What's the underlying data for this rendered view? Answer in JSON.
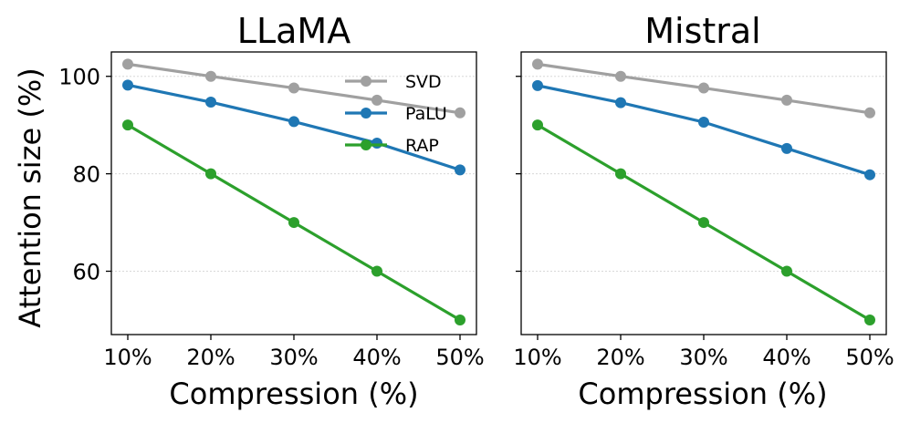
{
  "chart_data": [
    {
      "type": "line",
      "title": "LLaMA",
      "xlabel": "Compression (%)",
      "ylabel": "Attention size (%)",
      "categories": [
        "10%",
        "20%",
        "30%",
        "40%",
        "50%"
      ],
      "ylim": [
        47,
        105
      ],
      "yticks": [
        60,
        80,
        100
      ],
      "grid": true,
      "legend": "top-right",
      "series": [
        {
          "name": "SVD",
          "color": "#a0a0a0",
          "values": [
            102.5,
            100.0,
            97.6,
            95.1,
            92.5
          ]
        },
        {
          "name": "PaLU",
          "color": "#1f77b4",
          "values": [
            98.2,
            94.7,
            90.7,
            86.3,
            80.8
          ]
        },
        {
          "name": "RAP",
          "color": "#2ca02c",
          "values": [
            90.0,
            80.0,
            70.0,
            60.0,
            50.0
          ]
        }
      ]
    },
    {
      "type": "line",
      "title": "Mistral",
      "xlabel": "Compression (%)",
      "ylabel": "",
      "categories": [
        "10%",
        "20%",
        "30%",
        "40%",
        "50%"
      ],
      "ylim": [
        47,
        105
      ],
      "yticks": [
        60,
        80,
        100
      ],
      "grid": true,
      "series": [
        {
          "name": "SVD",
          "color": "#a0a0a0",
          "values": [
            102.5,
            100.0,
            97.6,
            95.1,
            92.5
          ]
        },
        {
          "name": "PaLU",
          "color": "#1f77b4",
          "values": [
            98.1,
            94.6,
            90.6,
            85.2,
            79.8
          ]
        },
        {
          "name": "RAP",
          "color": "#2ca02c",
          "values": [
            90.0,
            80.0,
            70.0,
            60.0,
            50.0
          ]
        }
      ]
    }
  ]
}
